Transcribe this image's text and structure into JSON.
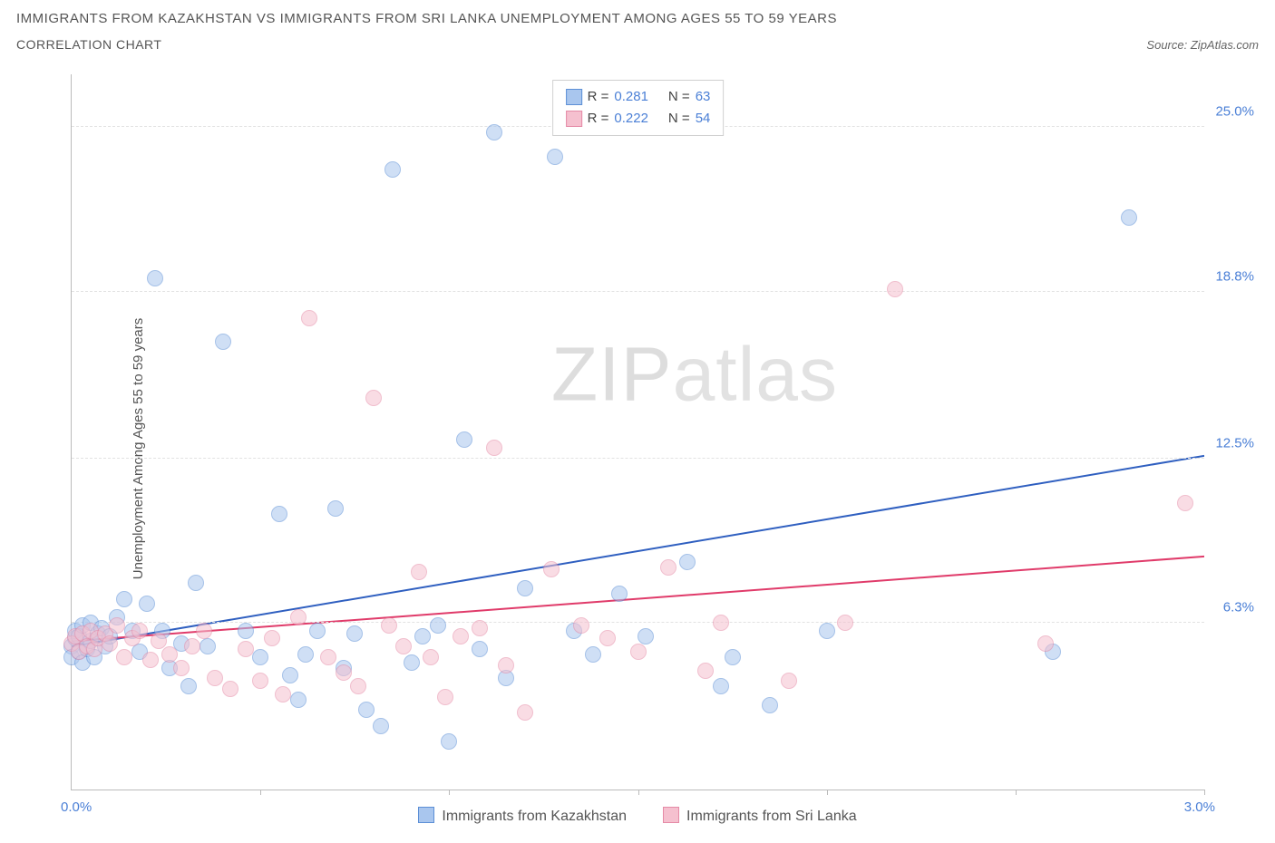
{
  "title": "IMMIGRANTS FROM KAZAKHSTAN VS IMMIGRANTS FROM SRI LANKA UNEMPLOYMENT AMONG AGES 55 TO 59 YEARS",
  "subtitle": "CORRELATION CHART",
  "source_label": "Source:",
  "source_name": "ZipAtlas.com",
  "y_axis_label": "Unemployment Among Ages 55 to 59 years",
  "watermark_a": "ZIP",
  "watermark_b": "atlas",
  "chart": {
    "type": "scatter",
    "xlim": [
      0.0,
      3.0
    ],
    "ylim": [
      0.0,
      27.0
    ],
    "x_tick_positions": [
      0.0,
      0.5,
      1.0,
      1.5,
      2.0,
      2.5,
      3.0
    ],
    "x_min_label": "0.0%",
    "x_max_label": "3.0%",
    "y_ticks": [
      {
        "v": 6.3,
        "label": "6.3%"
      },
      {
        "v": 12.5,
        "label": "12.5%"
      },
      {
        "v": 18.8,
        "label": "18.8%"
      },
      {
        "v": 25.0,
        "label": "25.0%"
      }
    ],
    "background_color": "#ffffff",
    "grid_color": "#e2e2e2",
    "axis_color": "#bbbbbb",
    "tick_label_color": "#4a7fd6",
    "marker_radius": 9,
    "marker_opacity": 0.55,
    "line_width": 2,
    "series": [
      {
        "key": "kazakhstan",
        "label": "Immigrants from Kazakhstan",
        "fill": "#a9c6ee",
        "stroke": "#5c8fd6",
        "line_color": "#2f5fc0",
        "R": "0.281",
        "N": "63",
        "trend": {
          "y_at_xmin": 5.4,
          "y_at_xmax": 12.6
        },
        "points": [
          [
            0.0,
            5.4
          ],
          [
            0.0,
            5.0
          ],
          [
            0.01,
            5.7
          ],
          [
            0.01,
            6.0
          ],
          [
            0.02,
            5.2
          ],
          [
            0.02,
            5.8
          ],
          [
            0.03,
            4.8
          ],
          [
            0.03,
            6.2
          ],
          [
            0.04,
            5.3
          ],
          [
            0.05,
            5.6
          ],
          [
            0.05,
            6.3
          ],
          [
            0.06,
            5.0
          ],
          [
            0.07,
            5.9
          ],
          [
            0.08,
            6.1
          ],
          [
            0.09,
            5.4
          ],
          [
            0.1,
            5.8
          ],
          [
            0.12,
            6.5
          ],
          [
            0.14,
            7.2
          ],
          [
            0.16,
            6.0
          ],
          [
            0.18,
            5.2
          ],
          [
            0.2,
            7.0
          ],
          [
            0.22,
            19.3
          ],
          [
            0.24,
            6.0
          ],
          [
            0.26,
            4.6
          ],
          [
            0.29,
            5.5
          ],
          [
            0.31,
            3.9
          ],
          [
            0.33,
            7.8
          ],
          [
            0.36,
            5.4
          ],
          [
            0.4,
            16.9
          ],
          [
            0.46,
            6.0
          ],
          [
            0.5,
            5.0
          ],
          [
            0.55,
            10.4
          ],
          [
            0.58,
            4.3
          ],
          [
            0.6,
            3.4
          ],
          [
            0.62,
            5.1
          ],
          [
            0.65,
            6.0
          ],
          [
            0.7,
            10.6
          ],
          [
            0.72,
            4.6
          ],
          [
            0.75,
            5.9
          ],
          [
            0.78,
            3.0
          ],
          [
            0.82,
            2.4
          ],
          [
            0.85,
            23.4
          ],
          [
            0.9,
            4.8
          ],
          [
            0.93,
            5.8
          ],
          [
            0.97,
            6.2
          ],
          [
            1.0,
            1.8
          ],
          [
            1.04,
            13.2
          ],
          [
            1.08,
            5.3
          ],
          [
            1.12,
            24.8
          ],
          [
            1.15,
            4.2
          ],
          [
            1.2,
            7.6
          ],
          [
            1.28,
            23.9
          ],
          [
            1.33,
            6.0
          ],
          [
            1.38,
            5.1
          ],
          [
            1.45,
            7.4
          ],
          [
            1.52,
            5.8
          ],
          [
            1.63,
            8.6
          ],
          [
            1.72,
            3.9
          ],
          [
            1.75,
            5.0
          ],
          [
            1.85,
            3.2
          ],
          [
            2.0,
            6.0
          ],
          [
            2.6,
            5.2
          ],
          [
            2.8,
            21.6
          ]
        ]
      },
      {
        "key": "srilanka",
        "label": "Immigrants from Sri Lanka",
        "fill": "#f5c0cf",
        "stroke": "#e58aa6",
        "line_color": "#e03b6a",
        "R": "0.222",
        "N": "54",
        "trend": {
          "y_at_xmin": 5.6,
          "y_at_xmax": 8.8
        },
        "points": [
          [
            0.0,
            5.5
          ],
          [
            0.01,
            5.8
          ],
          [
            0.02,
            5.2
          ],
          [
            0.03,
            5.9
          ],
          [
            0.04,
            5.4
          ],
          [
            0.05,
            6.0
          ],
          [
            0.06,
            5.3
          ],
          [
            0.07,
            5.7
          ],
          [
            0.09,
            5.9
          ],
          [
            0.1,
            5.5
          ],
          [
            0.12,
            6.2
          ],
          [
            0.14,
            5.0
          ],
          [
            0.16,
            5.7
          ],
          [
            0.18,
            6.0
          ],
          [
            0.21,
            4.9
          ],
          [
            0.23,
            5.6
          ],
          [
            0.26,
            5.1
          ],
          [
            0.29,
            4.6
          ],
          [
            0.32,
            5.4
          ],
          [
            0.35,
            6.0
          ],
          [
            0.38,
            4.2
          ],
          [
            0.42,
            3.8
          ],
          [
            0.46,
            5.3
          ],
          [
            0.5,
            4.1
          ],
          [
            0.53,
            5.7
          ],
          [
            0.56,
            3.6
          ],
          [
            0.6,
            6.5
          ],
          [
            0.63,
            17.8
          ],
          [
            0.68,
            5.0
          ],
          [
            0.72,
            4.4
          ],
          [
            0.76,
            3.9
          ],
          [
            0.8,
            14.8
          ],
          [
            0.84,
            6.2
          ],
          [
            0.88,
            5.4
          ],
          [
            0.92,
            8.2
          ],
          [
            0.95,
            5.0
          ],
          [
            0.99,
            3.5
          ],
          [
            1.03,
            5.8
          ],
          [
            1.08,
            6.1
          ],
          [
            1.12,
            12.9
          ],
          [
            1.15,
            4.7
          ],
          [
            1.2,
            2.9
          ],
          [
            1.27,
            8.3
          ],
          [
            1.35,
            6.2
          ],
          [
            1.42,
            5.7
          ],
          [
            1.5,
            5.2
          ],
          [
            1.58,
            8.4
          ],
          [
            1.68,
            4.5
          ],
          [
            1.72,
            6.3
          ],
          [
            1.9,
            4.1
          ],
          [
            2.05,
            6.3
          ],
          [
            2.18,
            18.9
          ],
          [
            2.58,
            5.5
          ],
          [
            2.95,
            10.8
          ]
        ]
      }
    ],
    "legend_top": {
      "r_label": "R =",
      "n_label": "N ="
    }
  }
}
